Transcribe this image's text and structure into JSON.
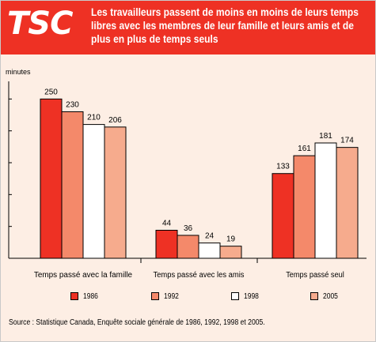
{
  "header": {
    "logo": "TSC",
    "title": "Les travailleurs passent de moins en moins de leurs temps libres avec les membres de leur famille et leurs amis et de plus en plus de temps seuls"
  },
  "colors": {
    "header_bg": "#ee3124",
    "panel_bg": "#fdeee4",
    "series": [
      "#ee3124",
      "#f4896a",
      "#ffffff",
      "#f6ab8d"
    ]
  },
  "chart_data": {
    "type": "bar",
    "ylabel": "minutes",
    "ylim": [
      0,
      300
    ],
    "grid": false,
    "legend_position": "bottom",
    "categories": [
      "Temps passé avec la famille",
      "Temps passé avec les amis",
      "Temps passé seul"
    ],
    "series": [
      {
        "name": "1986",
        "values": [
          250,
          44,
          133
        ]
      },
      {
        "name": "1992",
        "values": [
          230,
          36,
          161
        ]
      },
      {
        "name": "1998",
        "values": [
          210,
          24,
          181
        ]
      },
      {
        "name": "2005",
        "values": [
          206,
          19,
          174
        ]
      }
    ]
  },
  "source": "Source : Statistique Canada, Enquête sociale générale de 1986, 1992, 1998 et 2005."
}
